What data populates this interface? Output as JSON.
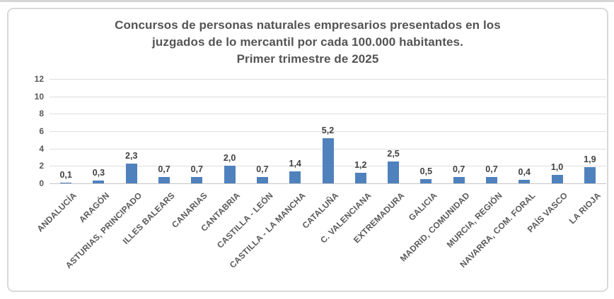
{
  "chart": {
    "title_lines": [
      "Concursos de personas naturales empresarios presentados en los",
      "juzgados de lo mercantil por cada 100.000 habitantes.",
      "Primer trimestre de 2025"
    ]
  },
  "chart_data": {
    "type": "bar",
    "title": "Concursos de personas naturales empresarios presentados en los juzgados de lo mercantil por cada 100.000 habitantes. Primer trimestre de 2025",
    "categories": [
      "ANDALUCÍA",
      "ARAGÓN",
      "ASTURIAS, PRINCIPADO",
      "ILLES BALEARS",
      "CANARIAS",
      "CANTABRIA",
      "CASTILLA - LEÓN",
      "CASTILLA - LA MANCHA",
      "CATALUÑA",
      "C. VALENCIANA",
      "EXTREMADURA",
      "GALICIA",
      "MADRID, COMUNIDAD",
      "MURCIA, REGIÓN",
      "NAVARRA, COM. FORAL",
      "PAÍS VASCO",
      "LA RIOJA"
    ],
    "values": [
      0.1,
      0.3,
      2.3,
      0.7,
      0.7,
      2.0,
      0.7,
      1.4,
      5.2,
      1.2,
      2.5,
      0.5,
      0.7,
      0.7,
      0.4,
      1.0,
      1.9
    ],
    "value_labels": [
      "0,1",
      "0,3",
      "2,3",
      "0,7",
      "0,7",
      "2,0",
      "0,7",
      "1,4",
      "5,2",
      "1,2",
      "2,5",
      "0,5",
      "0,7",
      "0,7",
      "0,4",
      "1,0",
      "1,9"
    ],
    "yticks": [
      0,
      2,
      4,
      6,
      8,
      10,
      12
    ],
    "ylim": [
      0,
      12
    ],
    "xlabel": "",
    "ylabel": "",
    "grid": "horizontal",
    "legend": "none",
    "bar_color": "#4F81BD",
    "value_label_color": "#404040",
    "axis_text_color": "#595959",
    "gridline_color": "#dedede"
  }
}
